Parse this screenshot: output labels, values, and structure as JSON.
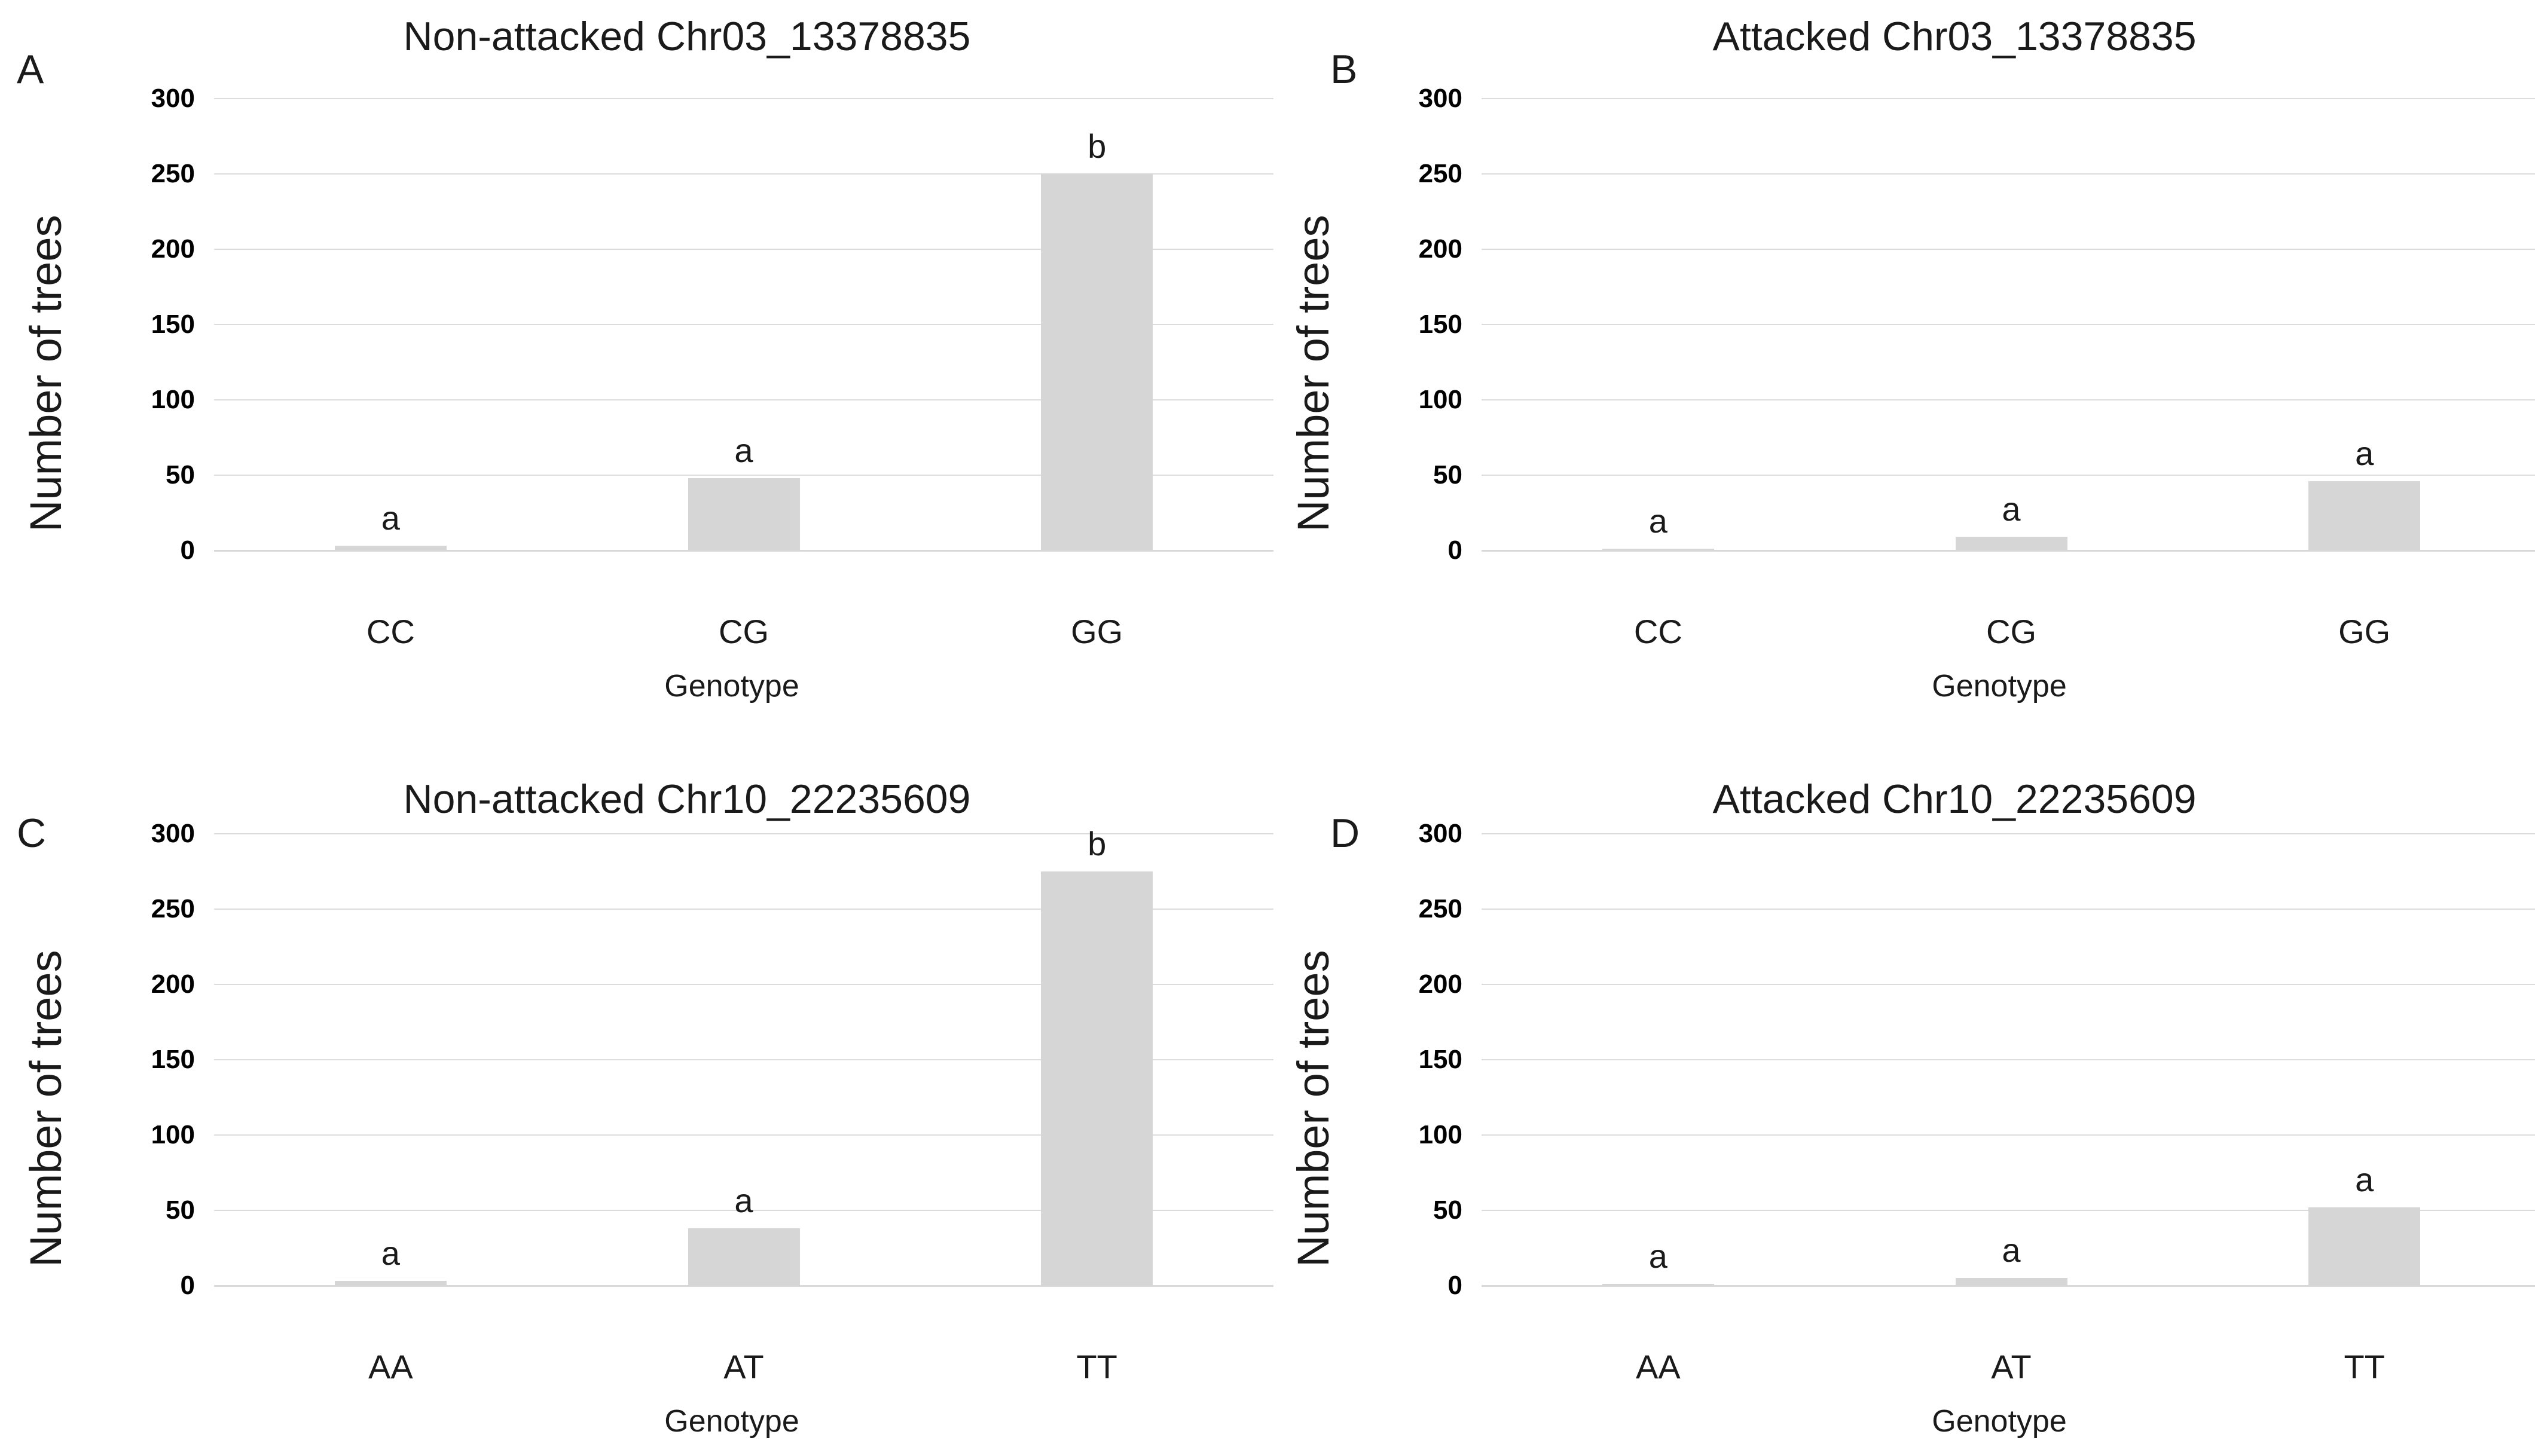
{
  "figure": {
    "background_color": "#ffffff",
    "text_color": "#1a1a1a",
    "bar_color": "#d6d6d6",
    "gridline_color": "#dcdcdc"
  },
  "shared": {
    "y_axis_label": "Number of trees",
    "x_axis_label": "Genotype",
    "y_ticks": [
      0,
      50,
      100,
      150,
      200,
      250,
      300
    ]
  },
  "chart_data": [
    {
      "panel_letter": "A",
      "title": "Non-attacked Chr03_13378835",
      "type": "bar",
      "categories": [
        "CC",
        "CG",
        "GG"
      ],
      "values": [
        3,
        48,
        250
      ],
      "sig_letters": [
        "a",
        "a",
        "b"
      ],
      "xlabel": "Genotype",
      "ylabel": "Number of trees",
      "ylim": [
        0,
        300
      ],
      "yticks": [
        0,
        50,
        100,
        150,
        200,
        250,
        300
      ],
      "grid": true,
      "legend": "none"
    },
    {
      "panel_letter": "B",
      "title": "Attacked Chr03_13378835",
      "type": "bar",
      "categories": [
        "CC",
        "CG",
        "GG"
      ],
      "values": [
        1,
        9,
        46
      ],
      "sig_letters": [
        "a",
        "a",
        "a"
      ],
      "xlabel": "Genotype",
      "ylabel": "Number of trees",
      "ylim": [
        0,
        300
      ],
      "yticks": [
        0,
        50,
        100,
        150,
        200,
        250,
        300
      ],
      "grid": true,
      "legend": "none"
    },
    {
      "panel_letter": "C",
      "title": "Non-attacked Chr10_22235609",
      "type": "bar",
      "categories": [
        "AA",
        "AT",
        "TT"
      ],
      "values": [
        3,
        38,
        275
      ],
      "sig_letters": [
        "a",
        "a",
        "b"
      ],
      "xlabel": "Genotype",
      "ylabel": "Number of trees",
      "ylim": [
        0,
        300
      ],
      "yticks": [
        0,
        50,
        100,
        150,
        200,
        250,
        300
      ],
      "grid": true,
      "legend": "none"
    },
    {
      "panel_letter": "D",
      "title": "Attacked Chr10_22235609",
      "type": "bar",
      "categories": [
        "AA",
        "AT",
        "TT"
      ],
      "values": [
        1,
        5,
        52
      ],
      "sig_letters": [
        "a",
        "a",
        "a"
      ],
      "xlabel": "Genotype",
      "ylabel": "Number of trees",
      "ylim": [
        0,
        300
      ],
      "yticks": [
        0,
        50,
        100,
        150,
        200,
        250,
        300
      ],
      "grid": true,
      "legend": "none"
    }
  ]
}
